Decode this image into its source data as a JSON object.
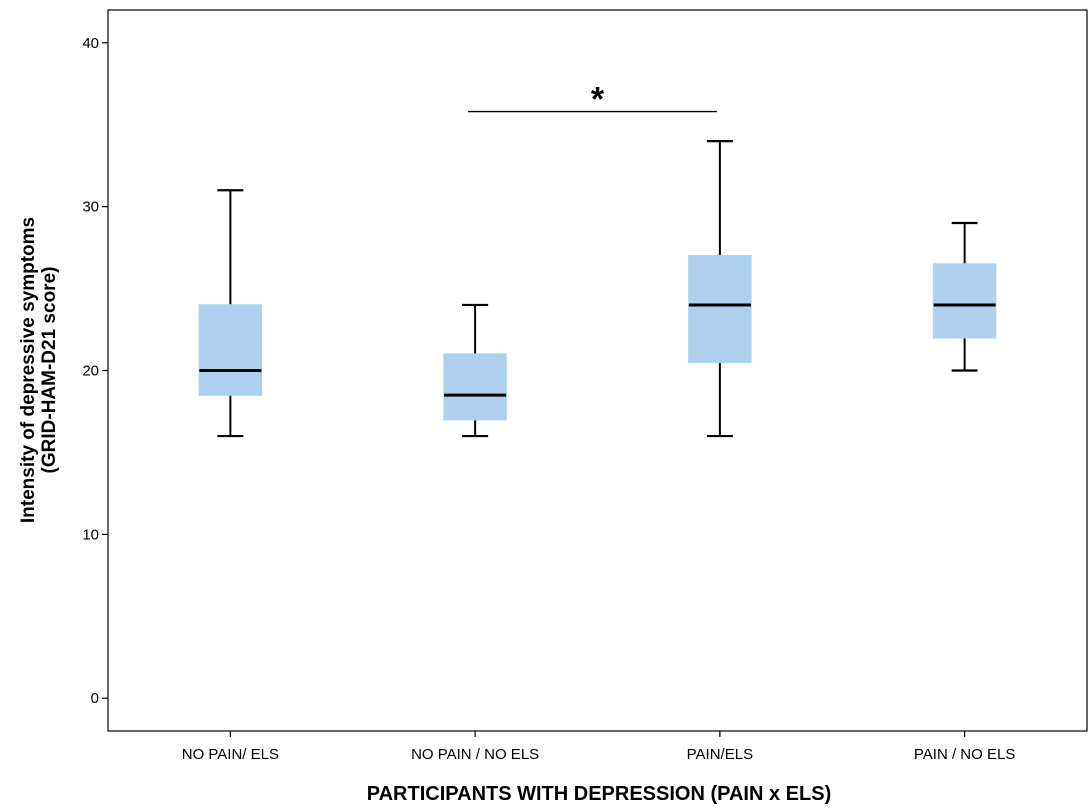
{
  "chart_data": {
    "type": "box",
    "xlabel": "PARTICIPANTS WITH DEPRESSION (PAIN x ELS)",
    "ylabel": "Intensity of depressive symptoms",
    "ylabel_line2": "(GRID-HAM-D21 score)",
    "ylim": [
      -2,
      42
    ],
    "yticks": [
      0,
      10,
      20,
      30,
      40
    ],
    "categories": [
      "NO PAIN/ ELS",
      "NO PAIN / NO ELS",
      "PAIN/ELS",
      "PAIN / NO ELS"
    ],
    "boxes": [
      {
        "min": 16,
        "q1": 18.5,
        "median": 20,
        "q3": 24,
        "max": 31
      },
      {
        "min": 16,
        "q1": 17,
        "median": 18.5,
        "q3": 21,
        "max": 24
      },
      {
        "min": 16,
        "q1": 20.5,
        "median": 24,
        "q3": 27,
        "max": 34
      },
      {
        "min": 20,
        "q1": 22,
        "median": 24,
        "q3": 26.5,
        "max": 29
      }
    ],
    "significance": {
      "from": 1,
      "to": 2,
      "y": 35.8,
      "label": "*"
    },
    "colors": {
      "box_fill": "#aed0ee",
      "box_stroke": "#a9d6e6",
      "line": "#000000"
    }
  }
}
